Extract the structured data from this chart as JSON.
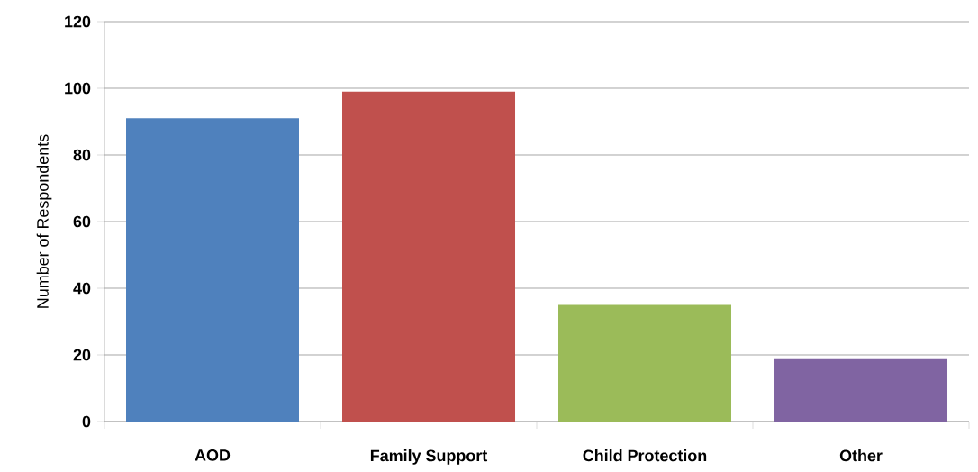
{
  "chart_data": {
    "type": "bar",
    "ylabel": "Number of Respondents",
    "categories": [
      "AOD",
      "Family Support",
      "Child Protection",
      "Other"
    ],
    "values": [
      91,
      99,
      35,
      19
    ],
    "colors": [
      "#4f81bd",
      "#c0504d",
      "#9bbb59",
      "#8064a2"
    ],
    "ylim": [
      0,
      120
    ],
    "yticks": [
      0,
      20,
      40,
      60,
      80,
      100,
      120
    ],
    "grid": "y"
  }
}
